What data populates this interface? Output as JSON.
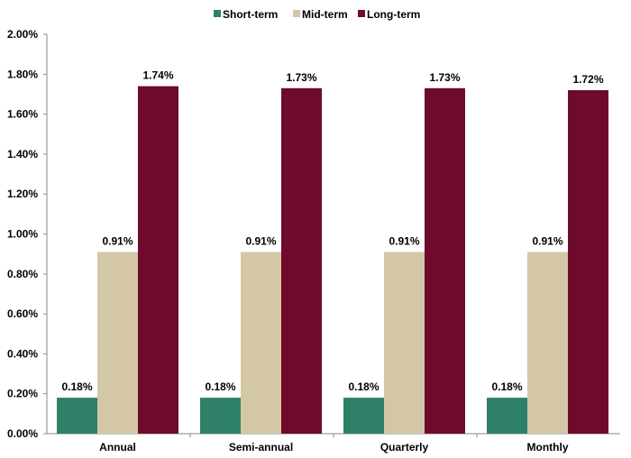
{
  "chart_data": {
    "type": "bar",
    "categories": [
      "Annual",
      "Semi-annual",
      "Quarterly",
      "Monthly"
    ],
    "series": [
      {
        "name": "Short-term",
        "color": "#2e8068",
        "values": [
          0.18,
          0.18,
          0.18,
          0.18
        ],
        "labels": [
          "0.18%",
          "0.18%",
          "0.18%",
          "0.18%"
        ]
      },
      {
        "name": "Mid-term",
        "color": "#d3c7a6",
        "values": [
          0.91,
          0.91,
          0.91,
          0.91
        ],
        "labels": [
          "0.91%",
          "0.91%",
          "0.91%",
          "0.91%"
        ]
      },
      {
        "name": "Long-term",
        "color": "#6e0b2b",
        "values": [
          1.74,
          1.73,
          1.73,
          1.72
        ],
        "labels": [
          "1.74%",
          "1.73%",
          "1.73%",
          "1.72%"
        ]
      }
    ],
    "ylim": [
      0,
      2
    ],
    "yticks": [
      0,
      0.2,
      0.4,
      0.6,
      0.8,
      1.0,
      1.2,
      1.4,
      1.6,
      1.8,
      2.0
    ],
    "ytick_labels": [
      "0.00%",
      "0.20%",
      "0.40%",
      "0.60%",
      "0.80%",
      "1.00%",
      "1.20%",
      "1.40%",
      "1.60%",
      "1.80%",
      "2.00%"
    ],
    "legend_position": "top",
    "grid": false,
    "unit": "%"
  }
}
